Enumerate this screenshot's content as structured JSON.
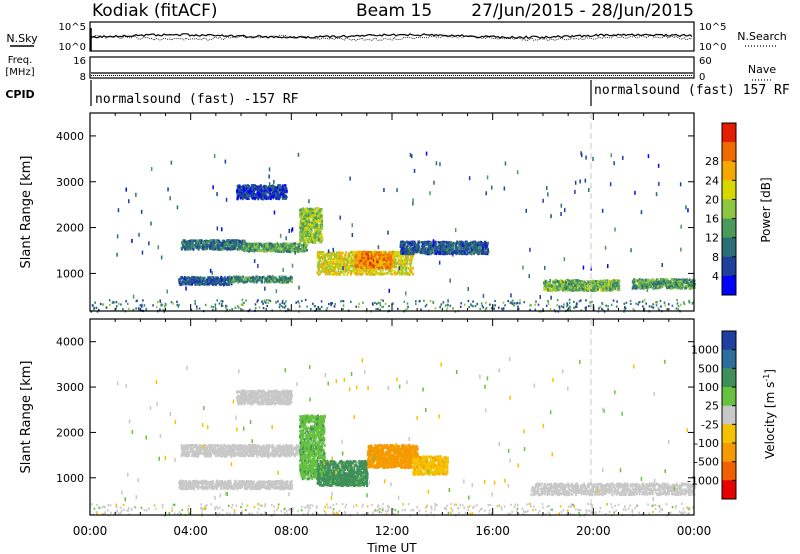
{
  "header": {
    "title": "Kodiak (fitACF)",
    "beam": "Beam 15",
    "dates": "27/Jun/2015 - 28/Jun/2015"
  },
  "top_panels": {
    "nsky_label": "N.Sky",
    "nsearch_label": "N.Search",
    "noise_ticks": [
      "10^5",
      "10^0"
    ],
    "freq_label_1": "Freq.",
    "freq_label_2": "[MHz]",
    "freq_ticks": [
      "16",
      "8"
    ],
    "nave_label": "Nave",
    "nave_ticks": [
      "60",
      "0"
    ],
    "cpid_label": "CPID",
    "cpid_left": "normalsound (fast) -157 RF",
    "cpid_right": "normalsound (fast) 157 RF"
  },
  "colors": {
    "power_scale": [
      "#0000ff",
      "#1e3f9e",
      "#2b6e78",
      "#4a9a5c",
      "#8ec63f",
      "#d8d800",
      "#f5a800",
      "#f06a00",
      "#e51d00"
    ],
    "velocity_scale": [
      "#1f3fa0",
      "#2d6f9a",
      "#3f8f5a",
      "#67c23f",
      "#c8c8c8",
      "#f5c200",
      "#f59a00",
      "#f06000",
      "#e60000"
    ]
  },
  "chart_data": [
    {
      "type": "heatmap",
      "name": "Power",
      "xlabel": "",
      "ylabel": "Slant Range [km]",
      "xlim": [
        "00:00",
        "24:00"
      ],
      "ylim": [
        180,
        4500
      ],
      "yticks": [
        1000,
        2000,
        3000,
        4000
      ],
      "colorbar": {
        "label": "Power [dB]",
        "ticks": [
          4,
          8,
          12,
          16,
          20,
          24,
          28
        ]
      },
      "regions": [
        {
          "t": [
            3.6,
            6.2
          ],
          "r": [
            1550,
            1750
          ],
          "v": 10
        },
        {
          "t": [
            6.0,
            8.6
          ],
          "r": [
            1500,
            1680
          ],
          "v": 14
        },
        {
          "t": [
            3.5,
            5.6
          ],
          "r": [
            780,
            950
          ],
          "v": 8
        },
        {
          "t": [
            5.5,
            8.0
          ],
          "r": [
            830,
            960
          ],
          "v": 12
        },
        {
          "t": [
            8.3,
            9.2
          ],
          "r": [
            1700,
            2450
          ],
          "v": 18
        },
        {
          "t": [
            9.0,
            12.8
          ],
          "r": [
            1000,
            1500
          ],
          "v": 22
        },
        {
          "t": [
            10.5,
            12.0
          ],
          "r": [
            1150,
            1500
          ],
          "v": 28
        },
        {
          "t": [
            12.3,
            15.8
          ],
          "r": [
            1450,
            1720
          ],
          "v": 8
        },
        {
          "t": [
            18.0,
            21.0
          ],
          "r": [
            650,
            880
          ],
          "v": 16
        },
        {
          "t": [
            21.5,
            24.0
          ],
          "r": [
            700,
            900
          ],
          "v": 14
        },
        {
          "t": [
            5.8,
            7.8
          ],
          "r": [
            2650,
            2950
          ],
          "v": 6
        }
      ]
    },
    {
      "type": "heatmap",
      "name": "Velocity",
      "xlabel": "Time UT",
      "ylabel": "Slant Range [km]",
      "xlim": [
        "00:00",
        "24:00"
      ],
      "ylim": [
        180,
        4500
      ],
      "xticks": [
        "00:00",
        "04:00",
        "08:00",
        "12:00",
        "16:00",
        "20:00",
        "00:00"
      ],
      "yticks": [
        1000,
        2000,
        3000,
        4000
      ],
      "colorbar": {
        "label": "Velocity [m s^-1]",
        "ticks": [
          1000,
          500,
          100,
          25,
          -25,
          -100,
          -500,
          -1000
        ]
      },
      "regions": [
        {
          "t": [
            3.6,
            8.6
          ],
          "r": [
            1500,
            1750
          ],
          "v": 0
        },
        {
          "t": [
            3.5,
            8.0
          ],
          "r": [
            780,
            960
          ],
          "v": 0
        },
        {
          "t": [
            8.3,
            9.3
          ],
          "r": [
            1000,
            2400
          ],
          "v": 80
        },
        {
          "t": [
            9.0,
            11.0
          ],
          "r": [
            850,
            1400
          ],
          "v": 150
        },
        {
          "t": [
            11.0,
            13.0
          ],
          "r": [
            1250,
            1750
          ],
          "v": -300
        },
        {
          "t": [
            12.8,
            14.2
          ],
          "r": [
            1100,
            1500
          ],
          "v": -80
        },
        {
          "t": [
            17.5,
            24.0
          ],
          "r": [
            650,
            900
          ],
          "v": 0
        },
        {
          "t": [
            5.8,
            8.0
          ],
          "r": [
            2650,
            2950
          ],
          "v": 0
        }
      ]
    }
  ]
}
